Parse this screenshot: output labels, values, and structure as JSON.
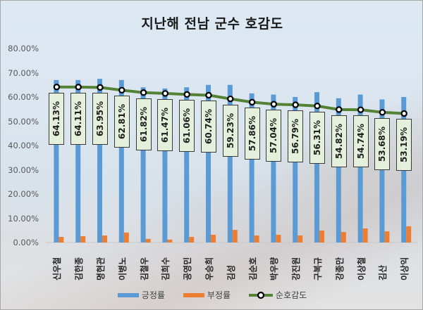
{
  "chart_data": {
    "type": "bar",
    "title": "지난해 전남 군수 호감도",
    "xlabel": "",
    "ylabel": "",
    "ylim": [
      0,
      80
    ],
    "yticks": [
      "0.00%",
      "10.00%",
      "20.00%",
      "30.00%",
      "40.00%",
      "50.00%",
      "60.00%",
      "70.00%",
      "80.00%"
    ],
    "grid": false,
    "legend_position": "bottom",
    "categories": [
      "신우철",
      "김한종",
      "명현관",
      "이병노",
      "김철우",
      "김희수",
      "공영민",
      "우승희",
      "김성",
      "김순호",
      "박우량",
      "강진원",
      "구복규",
      "강종만",
      "이상철",
      "김산",
      "이상익"
    ],
    "series": [
      {
        "name": "긍정률",
        "type": "bar",
        "color": "#5b9bd5",
        "values": [
          67.0,
          67.0,
          67.5,
          67.0,
          64.0,
          63.5,
          64.0,
          65.0,
          65.0,
          61.5,
          61.0,
          60.0,
          62.0,
          59.5,
          61.0,
          59.0,
          60.0
        ]
      },
      {
        "name": "부정률",
        "type": "bar",
        "color": "#ed7d31",
        "values": [
          2.3,
          2.6,
          2.9,
          4.1,
          1.5,
          1.2,
          2.3,
          3.2,
          5.2,
          2.9,
          3.2,
          2.9,
          4.9,
          4.3,
          5.8,
          4.6,
          6.7
        ]
      },
      {
        "name": "순호감도",
        "type": "line",
        "color": "#548235",
        "values": [
          64.13,
          64.11,
          63.95,
          62.81,
          61.82,
          61.47,
          61.06,
          60.74,
          59.23,
          57.86,
          57.04,
          56.79,
          56.31,
          54.82,
          54.74,
          53.68,
          53.19
        ],
        "labels": [
          "64.13%",
          "64.11%",
          "63.95%",
          "62.81%",
          "61.82%",
          "61.47%",
          "61.06%",
          "60.74%",
          "59.23%",
          "57.86%",
          "57.04%",
          "56.79%",
          "56.31%",
          "54.82%",
          "54.74%",
          "53.68%",
          "53.19%"
        ]
      }
    ]
  },
  "colors": {
    "positive": "#5b9bd5",
    "negative": "#ed7d31",
    "net": "#548235",
    "label_bg": "#e5f0dc"
  }
}
